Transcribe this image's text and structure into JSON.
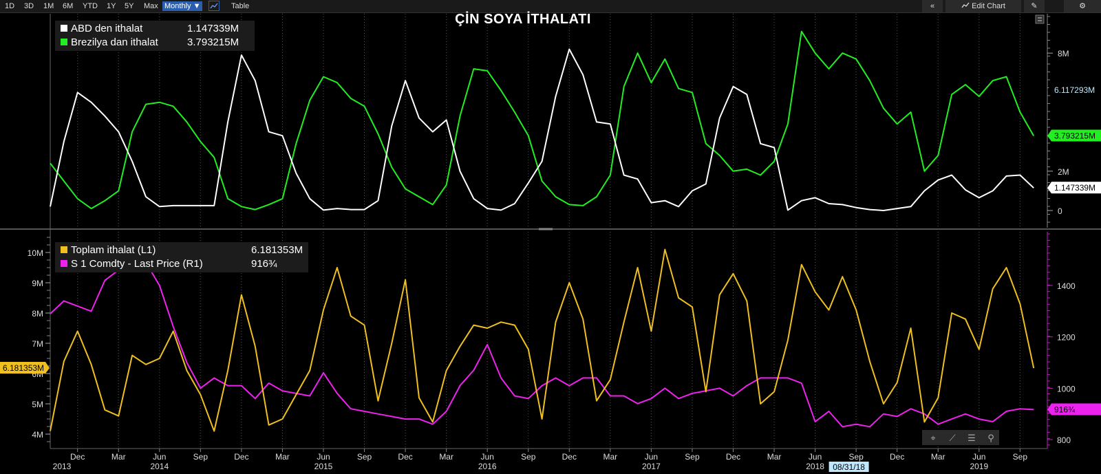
{
  "toolbar": {
    "ranges": [
      "1D",
      "3D",
      "1M",
      "6M",
      "YTD",
      "1Y",
      "5Y",
      "Max"
    ],
    "period": "Monthly ▼",
    "table": "Table",
    "edit_chart": "Edit Chart"
  },
  "chart_data": [
    {
      "type": "line",
      "title": "ÇİN SOYA İTHALATI",
      "x": [
        "2013-10",
        "2013-11",
        "2013-12",
        "2014-01",
        "2014-02",
        "2014-03",
        "2014-04",
        "2014-05",
        "2014-06",
        "2014-07",
        "2014-08",
        "2014-09",
        "2014-10",
        "2014-11",
        "2014-12",
        "2015-01",
        "2015-02",
        "2015-03",
        "2015-04",
        "2015-05",
        "2015-06",
        "2015-07",
        "2015-08",
        "2015-09",
        "2015-10",
        "2015-11",
        "2015-12",
        "2016-01",
        "2016-02",
        "2016-03",
        "2016-04",
        "2016-05",
        "2016-06",
        "2016-07",
        "2016-08",
        "2016-09",
        "2016-10",
        "2016-11",
        "2016-12",
        "2017-01",
        "2017-02",
        "2017-03",
        "2017-04",
        "2017-05",
        "2017-06",
        "2017-07",
        "2017-08",
        "2017-09",
        "2017-10",
        "2017-11",
        "2017-12",
        "2018-01",
        "2018-02",
        "2018-03",
        "2018-04",
        "2018-05",
        "2018-06",
        "2018-07",
        "2018-08",
        "2018-09",
        "2018-10",
        "2018-11",
        "2018-12",
        "2019-01",
        "2019-02",
        "2019-03",
        "2019-04",
        "2019-05",
        "2019-06",
        "2019-07",
        "2019-08",
        "2019-09",
        "2019-10"
      ],
      "y_ticks": [
        "0",
        "2M",
        "8M"
      ],
      "series": [
        {
          "name": "ABD den ithalat",
          "last": "1.147339M",
          "color": "#ffffff",
          "values": [
            0.2,
            3.5,
            6.0,
            5.5,
            4.8,
            4.0,
            2.5,
            0.7,
            0.2,
            0.25,
            0.25,
            0.25,
            0.25,
            4.5,
            7.9,
            6.6,
            4.0,
            3.8,
            1.9,
            0.6,
            0.02,
            0.1,
            0.05,
            0.05,
            0.5,
            4.3,
            6.6,
            4.7,
            4.0,
            4.6,
            2.0,
            0.6,
            0.1,
            0.02,
            0.35,
            1.4,
            2.5,
            5.8,
            8.2,
            6.9,
            4.5,
            4.4,
            1.8,
            1.6,
            0.4,
            0.5,
            0.2,
            1.0,
            1.35,
            4.7,
            6.3,
            5.9,
            3.4,
            3.2,
            0.02,
            0.5,
            0.65,
            0.35,
            0.3,
            0.15,
            0.05,
            0.0,
            0.1,
            0.2,
            1.0,
            1.55,
            1.8,
            1.05,
            0.65,
            1.0,
            1.75,
            1.8,
            1.147
          ]
        },
        {
          "name": "Brezilya dan ithalat",
          "last": "3.793215M",
          "color": "#22ee22",
          "values": [
            2.4,
            1.5,
            0.6,
            0.1,
            0.5,
            1.0,
            4.0,
            5.4,
            5.5,
            5.3,
            4.5,
            3.5,
            2.7,
            0.6,
            0.2,
            0.05,
            0.3,
            0.6,
            3.4,
            5.6,
            6.8,
            6.5,
            5.7,
            5.3,
            3.9,
            2.2,
            1.1,
            0.7,
            0.3,
            1.3,
            4.8,
            7.2,
            7.1,
            6.1,
            5.0,
            3.8,
            1.5,
            0.7,
            0.3,
            0.25,
            0.7,
            1.8,
            6.3,
            8.0,
            6.5,
            7.7,
            6.2,
            6.0,
            3.4,
            2.8,
            2.0,
            2.1,
            1.8,
            2.5,
            4.4,
            9.1,
            8.0,
            7.2,
            8.0,
            7.7,
            6.6,
            5.2,
            4.4,
            5.0,
            2.0,
            2.8,
            5.9,
            6.4,
            5.8,
            6.6,
            6.8,
            5.0,
            3.793
          ]
        }
      ]
    },
    {
      "type": "line",
      "x": [
        "2013-10",
        "2013-11",
        "2013-12",
        "2014-01",
        "2014-02",
        "2014-03",
        "2014-04",
        "2014-05",
        "2014-06",
        "2014-07",
        "2014-08",
        "2014-09",
        "2014-10",
        "2014-11",
        "2014-12",
        "2015-01",
        "2015-02",
        "2015-03",
        "2015-04",
        "2015-05",
        "2015-06",
        "2015-07",
        "2015-08",
        "2015-09",
        "2015-10",
        "2015-11",
        "2015-12",
        "2016-01",
        "2016-02",
        "2016-03",
        "2016-04",
        "2016-05",
        "2016-06",
        "2016-07",
        "2016-08",
        "2016-09",
        "2016-10",
        "2016-11",
        "2016-12",
        "2017-01",
        "2017-02",
        "2017-03",
        "2017-04",
        "2017-05",
        "2017-06",
        "2017-07",
        "2017-08",
        "2017-09",
        "2017-10",
        "2017-11",
        "2017-12",
        "2018-01",
        "2018-02",
        "2018-03",
        "2018-04",
        "2018-05",
        "2018-06",
        "2018-07",
        "2018-08",
        "2018-09",
        "2018-10",
        "2018-11",
        "2018-12",
        "2019-01",
        "2019-02",
        "2019-03",
        "2019-04",
        "2019-05",
        "2019-06",
        "2019-07",
        "2019-08",
        "2019-09",
        "2019-10"
      ],
      "left_ticks": [
        "4M",
        "5M",
        "6M",
        "7M",
        "8M",
        "9M",
        "10M"
      ],
      "right_ticks": [
        "800",
        "1000",
        "1200",
        "1400"
      ],
      "series": [
        {
          "name": "Toplam ithalat (L1)",
          "last": "6.181353M",
          "color": "#f0c020",
          "axis": "left",
          "values": [
            4.1,
            6.4,
            7.4,
            6.3,
            4.8,
            4.6,
            6.6,
            6.3,
            6.5,
            7.4,
            6.1,
            5.3,
            4.1,
            6.1,
            8.6,
            6.9,
            4.3,
            4.5,
            5.3,
            6.1,
            8.1,
            9.5,
            7.9,
            7.6,
            5.1,
            7.0,
            9.1,
            5.2,
            4.4,
            6.1,
            6.9,
            7.6,
            7.5,
            7.7,
            7.6,
            6.8,
            4.5,
            7.7,
            9.0,
            7.8,
            5.1,
            5.8,
            7.7,
            9.5,
            7.4,
            10.1,
            8.5,
            8.2,
            5.4,
            8.6,
            9.3,
            8.4,
            5.0,
            5.4,
            7.1,
            9.6,
            8.7,
            8.1,
            9.2,
            8.1,
            6.4,
            5.0,
            5.7,
            7.5,
            4.4,
            5.2,
            8.0,
            7.8,
            6.8,
            8.8,
            9.5,
            8.3,
            6.18
          ]
        },
        {
          "name": "S 1 Comdty - Last Price (R1)",
          "last": "916¾",
          "color": "#ee22ee",
          "axis": "right",
          "values": [
            1290,
            1340,
            1320,
            1300,
            1420,
            1460,
            1500,
            1490,
            1400,
            1240,
            1100,
            1000,
            1040,
            1010,
            1010,
            960,
            1020,
            990,
            980,
            970,
            1060,
            980,
            920,
            910,
            900,
            890,
            880,
            880,
            860,
            910,
            1010,
            1070,
            1170,
            1040,
            970,
            960,
            1010,
            1040,
            1010,
            1040,
            1040,
            970,
            970,
            940,
            960,
            1000,
            960,
            980,
            990,
            1000,
            970,
            1010,
            1040,
            1040,
            1040,
            1020,
            870,
            910,
            850,
            860,
            850,
            900,
            890,
            920,
            900,
            860,
            880,
            900,
            880,
            870,
            910,
            920,
            916.75
          ]
        }
      ]
    }
  ],
  "x_axis": {
    "months": [
      {
        "label": "Dec",
        "i": 2
      },
      {
        "label": "Mar",
        "i": 5
      },
      {
        "label": "Jun",
        "i": 8
      },
      {
        "label": "Sep",
        "i": 11
      },
      {
        "label": "Dec",
        "i": 14
      },
      {
        "label": "Mar",
        "i": 17
      },
      {
        "label": "Jun",
        "i": 20
      },
      {
        "label": "Sep",
        "i": 23
      },
      {
        "label": "Dec",
        "i": 26
      },
      {
        "label": "Mar",
        "i": 29
      },
      {
        "label": "Jun",
        "i": 32
      },
      {
        "label": "Sep",
        "i": 35
      },
      {
        "label": "Dec",
        "i": 38
      },
      {
        "label": "Mar",
        "i": 41
      },
      {
        "label": "Jun",
        "i": 44
      },
      {
        "label": "Sep",
        "i": 47
      },
      {
        "label": "Dec",
        "i": 50
      },
      {
        "label": "Mar",
        "i": 53
      },
      {
        "label": "Jun",
        "i": 56
      },
      {
        "label": "Sep",
        "i": 59
      },
      {
        "label": "Dec",
        "i": 62
      },
      {
        "label": "Mar",
        "i": 65
      },
      {
        "label": "Jun",
        "i": 68
      },
      {
        "label": "Sep",
        "i": 71
      }
    ],
    "years": [
      {
        "label": "2013",
        "i": 0
      },
      {
        "label": "2014",
        "i": 8
      },
      {
        "label": "2015",
        "i": 20
      },
      {
        "label": "2016",
        "i": 32
      },
      {
        "label": "2017",
        "i": 44
      },
      {
        "label": "2018",
        "i": 56
      },
      {
        "label": "2019",
        "i": 68
      }
    ],
    "date_marker": "08/31/18"
  },
  "callouts": {
    "upper_extra": "6.117293M"
  }
}
